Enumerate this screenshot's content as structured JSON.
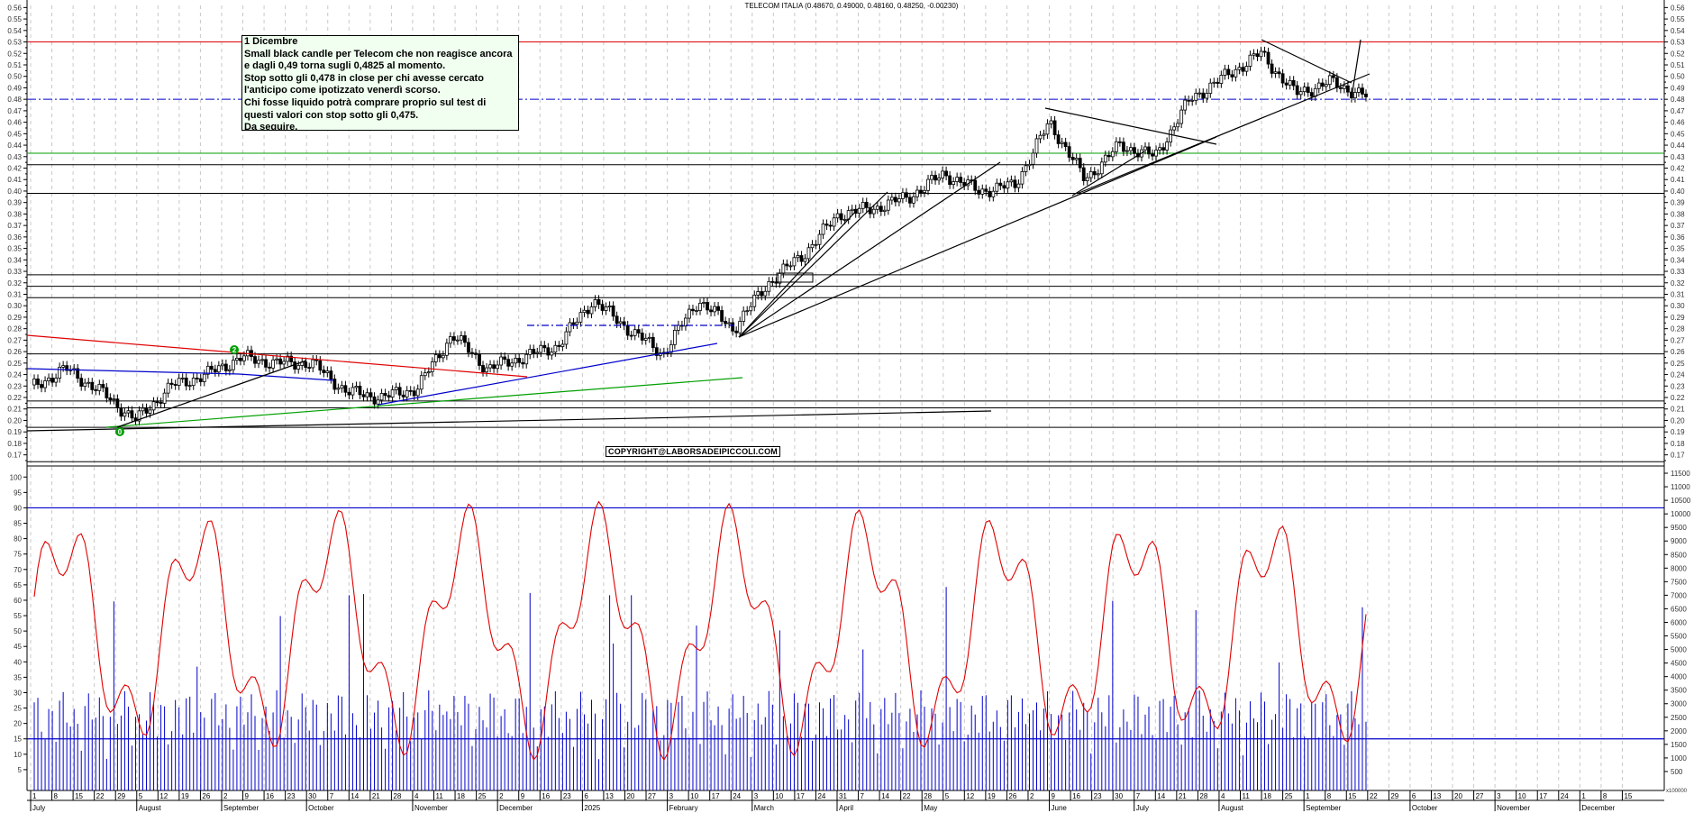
{
  "chart_data": {
    "type": "candlestick",
    "title": "TELECOM ITALIA (0.48670, 0.49000, 0.48160, 0.48250, -0.00230)",
    "instrument": "TELECOM ITALIA",
    "last_bar": {
      "open": 0.4867,
      "high": 0.49,
      "low": 0.4816,
      "close": 0.4825,
      "change": -0.0023
    },
    "price_panel": {
      "yaxis_ticks": [
        "0.56",
        "0.55",
        "0.54",
        "0.53",
        "0.52",
        "0.51",
        "0.50",
        "0.49",
        "0.48",
        "0.47",
        "0.46",
        "0.45",
        "0.44",
        "0.43",
        "0.42",
        "0.41",
        "0.40",
        "0.39",
        "0.38",
        "0.37",
        "0.36",
        "0.35",
        "0.34",
        "0.33",
        "0.32",
        "0.31",
        "0.30",
        "0.29",
        "0.28",
        "0.27",
        "0.26",
        "0.25",
        "0.24",
        "0.23",
        "0.22",
        "0.21",
        "0.20",
        "0.19",
        "0.18",
        "0.17"
      ],
      "ylim": [
        0.165,
        0.565
      ],
      "horizontal_lines": [
        {
          "value": 0.53,
          "color": "#e00000",
          "style": "solid"
        },
        {
          "value": 0.48,
          "color": "#0000cc",
          "style": "dashdot"
        },
        {
          "value": 0.433,
          "color": "#00a000",
          "style": "solid"
        },
        {
          "value": 0.423,
          "color": "#000000",
          "style": "solid"
        },
        {
          "value": 0.398,
          "color": "#000000",
          "style": "solid"
        },
        {
          "value": 0.327,
          "color": "#000000",
          "style": "solid"
        },
        {
          "value": 0.317,
          "color": "#000000",
          "style": "solid"
        },
        {
          "value": 0.307,
          "color": "#000000",
          "style": "solid"
        },
        {
          "value": 0.258,
          "color": "#000000",
          "style": "solid"
        },
        {
          "value": 0.217,
          "color": "#000000",
          "style": "solid"
        },
        {
          "value": 0.211,
          "color": "#000000",
          "style": "solid"
        },
        {
          "value": 0.194,
          "color": "#000000",
          "style": "solid"
        },
        {
          "value": 0.164,
          "color": "#000000",
          "style": "solid"
        }
      ],
      "approx_closes_weekly": [
        {
          "date": "2024-07-01",
          "close": 0.228
        },
        {
          "date": "2024-07-15",
          "close": 0.245
        },
        {
          "date": "2024-07-29",
          "close": 0.225
        },
        {
          "date": "2024-08-05",
          "close": 0.2
        },
        {
          "date": "2024-08-19",
          "close": 0.23
        },
        {
          "date": "2024-09-02",
          "close": 0.24
        },
        {
          "date": "2024-09-16",
          "close": 0.255
        },
        {
          "date": "2024-09-30",
          "close": 0.25
        },
        {
          "date": "2024-10-14",
          "close": 0.25
        },
        {
          "date": "2024-10-28",
          "close": 0.225
        },
        {
          "date": "2024-11-11",
          "close": 0.22
        },
        {
          "date": "2024-11-25",
          "close": 0.228
        },
        {
          "date": "2024-12-09",
          "close": 0.275
        },
        {
          "date": "2024-12-23",
          "close": 0.245
        },
        {
          "date": "2025-01-13",
          "close": 0.255
        },
        {
          "date": "2025-01-27",
          "close": 0.265
        },
        {
          "date": "2025-02-10",
          "close": 0.305
        },
        {
          "date": "2025-02-24",
          "close": 0.28
        },
        {
          "date": "2025-03-10",
          "close": 0.258
        },
        {
          "date": "2025-03-24",
          "close": 0.305
        },
        {
          "date": "2025-04-07",
          "close": 0.28
        },
        {
          "date": "2025-04-22",
          "close": 0.32
        },
        {
          "date": "2025-05-05",
          "close": 0.345
        },
        {
          "date": "2025-05-19",
          "close": 0.38
        },
        {
          "date": "2025-06-02",
          "close": 0.385
        },
        {
          "date": "2025-06-16",
          "close": 0.395
        },
        {
          "date": "2025-06-30",
          "close": 0.415
        },
        {
          "date": "2025-07-14",
          "close": 0.4
        },
        {
          "date": "2025-07-28",
          "close": 0.405
        },
        {
          "date": "2025-08-11",
          "close": 0.46
        },
        {
          "date": "2025-08-25",
          "close": 0.41
        },
        {
          "date": "2025-09-08",
          "close": 0.44
        },
        {
          "date": "2025-09-22",
          "close": 0.43
        },
        {
          "date": "2025-10-06",
          "close": 0.48
        },
        {
          "date": "2025-10-20",
          "close": 0.5
        },
        {
          "date": "2025-10-27",
          "close": 0.52
        },
        {
          "date": "2025-11-10",
          "close": 0.485
        },
        {
          "date": "2025-11-24",
          "close": 0.495
        },
        {
          "date": "2025-12-01",
          "close": 0.4825
        }
      ],
      "markers": [
        {
          "label": "0",
          "date": "2024-08-05",
          "value": 0.193
        },
        {
          "label": "2",
          "date": "2024-09-23",
          "value": 0.262
        }
      ]
    },
    "indicator_panel": {
      "left_axis_ticks": [
        "100",
        "95",
        "90",
        "85",
        "80",
        "75",
        "70",
        "65",
        "60",
        "55",
        "50",
        "45",
        "40",
        "35",
        "30",
        "25",
        "20",
        "15",
        "10",
        "5"
      ],
      "right_axis_ticks": [
        "11500",
        "11000",
        "10500",
        "10000",
        "9500",
        "9000",
        "8500",
        "8000",
        "7500",
        "7000",
        "6500",
        "6000",
        "5500",
        "5000",
        "4500",
        "4000",
        "3500",
        "3000",
        "2500",
        "2000",
        "1500",
        "1000",
        "500"
      ],
      "right_axis_unit": "x100000",
      "levels": [
        {
          "value": 90,
          "color": "#0000cc"
        },
        {
          "value": 15,
          "color": "#0000cc"
        }
      ],
      "oscillator_color": "#e00000",
      "volume_color": "#0000cc"
    },
    "x_axis": {
      "day_ticks": [
        "1",
        "8",
        "15",
        "22",
        "29",
        "5",
        "12",
        "19",
        "26",
        "2",
        "9",
        "16",
        "23",
        "30",
        "7",
        "14",
        "21",
        "28",
        "4",
        "11",
        "18",
        "25",
        "2",
        "9",
        "16",
        "23",
        "6",
        "13",
        "20",
        "27",
        "3",
        "10",
        "17",
        "24",
        "3",
        "10",
        "17",
        "24",
        "31",
        "7",
        "14",
        "22",
        "28",
        "5",
        "12",
        "19",
        "26",
        "2",
        "9",
        "16",
        "23",
        "30",
        "7",
        "14",
        "21",
        "28",
        "4",
        "11",
        "18",
        "25",
        "1",
        "8",
        "15",
        "22",
        "29",
        "6",
        "13",
        "20",
        "27",
        "3",
        "10",
        "17",
        "24",
        "1",
        "8",
        "15"
      ],
      "months": [
        "July",
        "August",
        "September",
        "October",
        "November",
        "December",
        "2025",
        "February",
        "March",
        "April",
        "May",
        "June",
        "July",
        "August",
        "September",
        "October",
        "November",
        "December"
      ]
    },
    "grid": true,
    "legend": null
  },
  "header": {
    "title": "TELECOM ITALIA (0.48670, 0.49000, 0.48160, 0.48250, -0.00230)"
  },
  "annotation": {
    "lines": [
      "1 Dicembre",
      "Small black candle per Telecom che non reagisce ancora",
      "e dagli 0,49 torna sugli 0,4825 al momento.",
      "Stop sotto gli 0,478 in close per chi avesse cercato",
      "l'anticipo come ipotizzato venerdì scorso.",
      "Chi fosse liquido potrà comprare proprio sul test di",
      "questi valori con stop sotto gli 0,475.",
      "Da seguire."
    ]
  },
  "watermark": {
    "text": "COPYRIGHT@LABORSADEIPICCOLI.COM"
  },
  "markers": {
    "m0": "0",
    "m2": "2"
  },
  "volume_unit": "x100000"
}
